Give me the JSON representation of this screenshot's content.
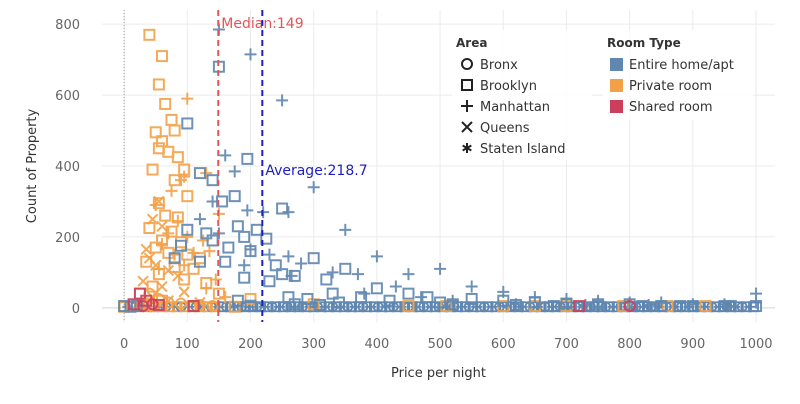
{
  "chart_data": {
    "type": "scatter",
    "xlabel": "Price per night",
    "ylabel": "Count of Property",
    "xlim": [
      -35,
      1030
    ],
    "ylim": [
      -40,
      840
    ],
    "x_ticks": [
      0,
      100,
      200,
      300,
      400,
      500,
      600,
      700,
      800,
      900,
      1000
    ],
    "y_ticks": [
      0,
      200,
      400,
      600,
      800
    ],
    "reference_lines": [
      {
        "name": "Median",
        "label": "Median:149",
        "value": 149,
        "color": "#e15759"
      },
      {
        "name": "Average",
        "label": "Average:218.7",
        "value": 218.7,
        "color": "#1f1fbf"
      }
    ],
    "legend_area": {
      "title": "Area",
      "items": [
        {
          "label": "Bronx",
          "shape": "circle"
        },
        {
          "label": "Brooklyn",
          "shape": "square"
        },
        {
          "label": "Manhattan",
          "shape": "plus"
        },
        {
          "label": "Queens",
          "shape": "cross"
        },
        {
          "label": "Staten Island",
          "shape": "asterisk"
        }
      ]
    },
    "legend_room": {
      "title": "Room Type",
      "items": [
        {
          "label": "Entire home/apt",
          "color": "#5f87b0"
        },
        {
          "label": "Private room",
          "color": "#f2a149"
        },
        {
          "label": "Shared room",
          "color": "#cc3f5c"
        }
      ]
    },
    "series": [
      {
        "room_type": "Private room",
        "shape": "square",
        "points": [
          [
            40,
            770
          ],
          [
            60,
            710
          ],
          [
            55,
            630
          ],
          [
            65,
            575
          ],
          [
            75,
            530
          ],
          [
            50,
            495
          ],
          [
            60,
            470
          ],
          [
            80,
            500
          ],
          [
            55,
            450
          ],
          [
            70,
            440
          ],
          [
            85,
            425
          ],
          [
            45,
            390
          ],
          [
            95,
            390
          ],
          [
            80,
            360
          ],
          [
            100,
            315
          ],
          [
            55,
            295
          ],
          [
            65,
            260
          ],
          [
            85,
            255
          ],
          [
            40,
            225
          ],
          [
            75,
            215
          ],
          [
            60,
            190
          ],
          [
            90,
            185
          ],
          [
            50,
            170
          ],
          [
            70,
            155
          ],
          [
            100,
            150
          ],
          [
            120,
            140
          ],
          [
            35,
            130
          ],
          [
            80,
            115
          ],
          [
            110,
            110
          ],
          [
            55,
            95
          ],
          [
            95,
            80
          ],
          [
            130,
            70
          ],
          [
            45,
            60
          ],
          [
            25,
            40
          ],
          [
            150,
            40
          ],
          [
            200,
            25
          ],
          [
            60,
            20
          ],
          [
            0,
            3
          ],
          [
            40,
            8
          ],
          [
            110,
            5
          ],
          [
            175,
            3
          ],
          [
            300,
            10
          ],
          [
            450,
            5
          ],
          [
            510,
            5
          ],
          [
            600,
            5
          ],
          [
            650,
            5
          ],
          [
            700,
            5
          ],
          [
            790,
            5
          ],
          [
            860,
            5
          ],
          [
            920,
            5
          ]
        ]
      },
      {
        "room_type": "Private room",
        "shape": "plus",
        "points": [
          [
            100,
            590
          ],
          [
            130,
            380
          ],
          [
            95,
            370
          ],
          [
            90,
            360
          ],
          [
            75,
            330
          ],
          [
            50,
            290
          ],
          [
            85,
            245
          ],
          [
            150,
            265
          ],
          [
            70,
            210
          ],
          [
            100,
            200
          ],
          [
            125,
            190
          ],
          [
            60,
            180
          ],
          [
            110,
            155
          ],
          [
            135,
            160
          ],
          [
            80,
            150
          ],
          [
            95,
            120
          ],
          [
            55,
            110
          ],
          [
            145,
            80
          ],
          [
            130,
            55
          ],
          [
            160,
            30
          ]
        ]
      },
      {
        "room_type": "Private room",
        "shape": "cross",
        "points": [
          [
            55,
            300
          ],
          [
            45,
            250
          ],
          [
            60,
            230
          ],
          [
            35,
            165
          ],
          [
            40,
            140
          ],
          [
            50,
            120
          ],
          [
            70,
            105
          ],
          [
            85,
            90
          ],
          [
            30,
            75
          ],
          [
            60,
            60
          ],
          [
            95,
            45
          ],
          [
            45,
            30
          ],
          [
            70,
            20
          ],
          [
            120,
            15
          ]
        ]
      },
      {
        "room_type": "Private room",
        "shape": "circle",
        "points": [
          [
            40,
            40
          ],
          [
            55,
            25
          ],
          [
            70,
            15
          ],
          [
            30,
            10
          ],
          [
            90,
            12
          ],
          [
            120,
            8
          ],
          [
            140,
            5
          ],
          [
            60,
            5
          ]
        ]
      },
      {
        "room_type": "Entire home/apt",
        "shape": "square",
        "points": [
          [
            150,
            680
          ],
          [
            100,
            520
          ],
          [
            195,
            420
          ],
          [
            120,
            380
          ],
          [
            140,
            360
          ],
          [
            175,
            315
          ],
          [
            155,
            300
          ],
          [
            250,
            280
          ],
          [
            180,
            230
          ],
          [
            210,
            220
          ],
          [
            100,
            220
          ],
          [
            130,
            210
          ],
          [
            190,
            200
          ],
          [
            140,
            190
          ],
          [
            225,
            195
          ],
          [
            90,
            175
          ],
          [
            165,
            170
          ],
          [
            200,
            160
          ],
          [
            300,
            140
          ],
          [
            350,
            110
          ],
          [
            240,
            120
          ],
          [
            250,
            95
          ],
          [
            270,
            90
          ],
          [
            320,
            80
          ],
          [
            120,
            130
          ],
          [
            160,
            130
          ],
          [
            230,
            75
          ],
          [
            190,
            85
          ],
          [
            80,
            140
          ],
          [
            330,
            40
          ],
          [
            400,
            55
          ],
          [
            450,
            40
          ],
          [
            480,
            30
          ],
          [
            550,
            25
          ],
          [
            600,
            20
          ],
          [
            650,
            15
          ],
          [
            700,
            12
          ],
          [
            750,
            10
          ],
          [
            800,
            10
          ],
          [
            850,
            5
          ],
          [
            900,
            5
          ],
          [
            950,
            5
          ],
          [
            1000,
            5
          ],
          [
            375,
            30
          ],
          [
            420,
            20
          ],
          [
            500,
            15
          ],
          [
            520,
            10
          ],
          [
            620,
            8
          ],
          [
            680,
            5
          ],
          [
            820,
            5
          ],
          [
            880,
            5
          ],
          [
            960,
            5
          ],
          [
            20,
            5
          ],
          [
            0,
            5
          ],
          [
            10,
            3
          ],
          [
            270,
            10
          ],
          [
            310,
            8
          ],
          [
            200,
            6
          ],
          [
            180,
            20
          ],
          [
            260,
            30
          ],
          [
            290,
            25
          ],
          [
            340,
            15
          ]
        ]
      },
      {
        "room_type": "Entire home/apt",
        "shape": "plus",
        "points": [
          [
            150,
            785
          ],
          [
            200,
            715
          ],
          [
            250,
            585
          ],
          [
            160,
            430
          ],
          [
            175,
            385
          ],
          [
            300,
            340
          ],
          [
            140,
            300
          ],
          [
            195,
            275
          ],
          [
            220,
            270
          ],
          [
            260,
            270
          ],
          [
            120,
            250
          ],
          [
            350,
            220
          ],
          [
            150,
            210
          ],
          [
            230,
            150
          ],
          [
            200,
            165
          ],
          [
            260,
            145
          ],
          [
            400,
            145
          ],
          [
            330,
            100
          ],
          [
            370,
            95
          ],
          [
            450,
            95
          ],
          [
            500,
            110
          ],
          [
            265,
            90
          ],
          [
            190,
            120
          ],
          [
            280,
            125
          ],
          [
            430,
            60
          ],
          [
            550,
            60
          ],
          [
            600,
            45
          ],
          [
            650,
            30
          ],
          [
            700,
            25
          ],
          [
            750,
            20
          ],
          [
            800,
            15
          ],
          [
            850,
            15
          ],
          [
            900,
            10
          ],
          [
            950,
            10
          ],
          [
            1000,
            40
          ],
          [
            1000,
            15
          ],
          [
            620,
            10
          ],
          [
            730,
            8
          ],
          [
            830,
            8
          ],
          [
            960,
            5
          ],
          [
            380,
            40
          ],
          [
            470,
            30
          ],
          [
            520,
            20
          ]
        ]
      },
      {
        "room_type": "Shared room",
        "shape": "square",
        "points": [
          [
            25,
            40
          ],
          [
            35,
            20
          ],
          [
            15,
            10
          ],
          [
            720,
            5
          ],
          [
            55,
            8
          ],
          [
            110,
            5
          ]
        ]
      },
      {
        "room_type": "Shared room",
        "shape": "circle",
        "points": [
          [
            800,
            5
          ],
          [
            45,
            10
          ],
          [
            30,
            5
          ]
        ]
      }
    ]
  }
}
